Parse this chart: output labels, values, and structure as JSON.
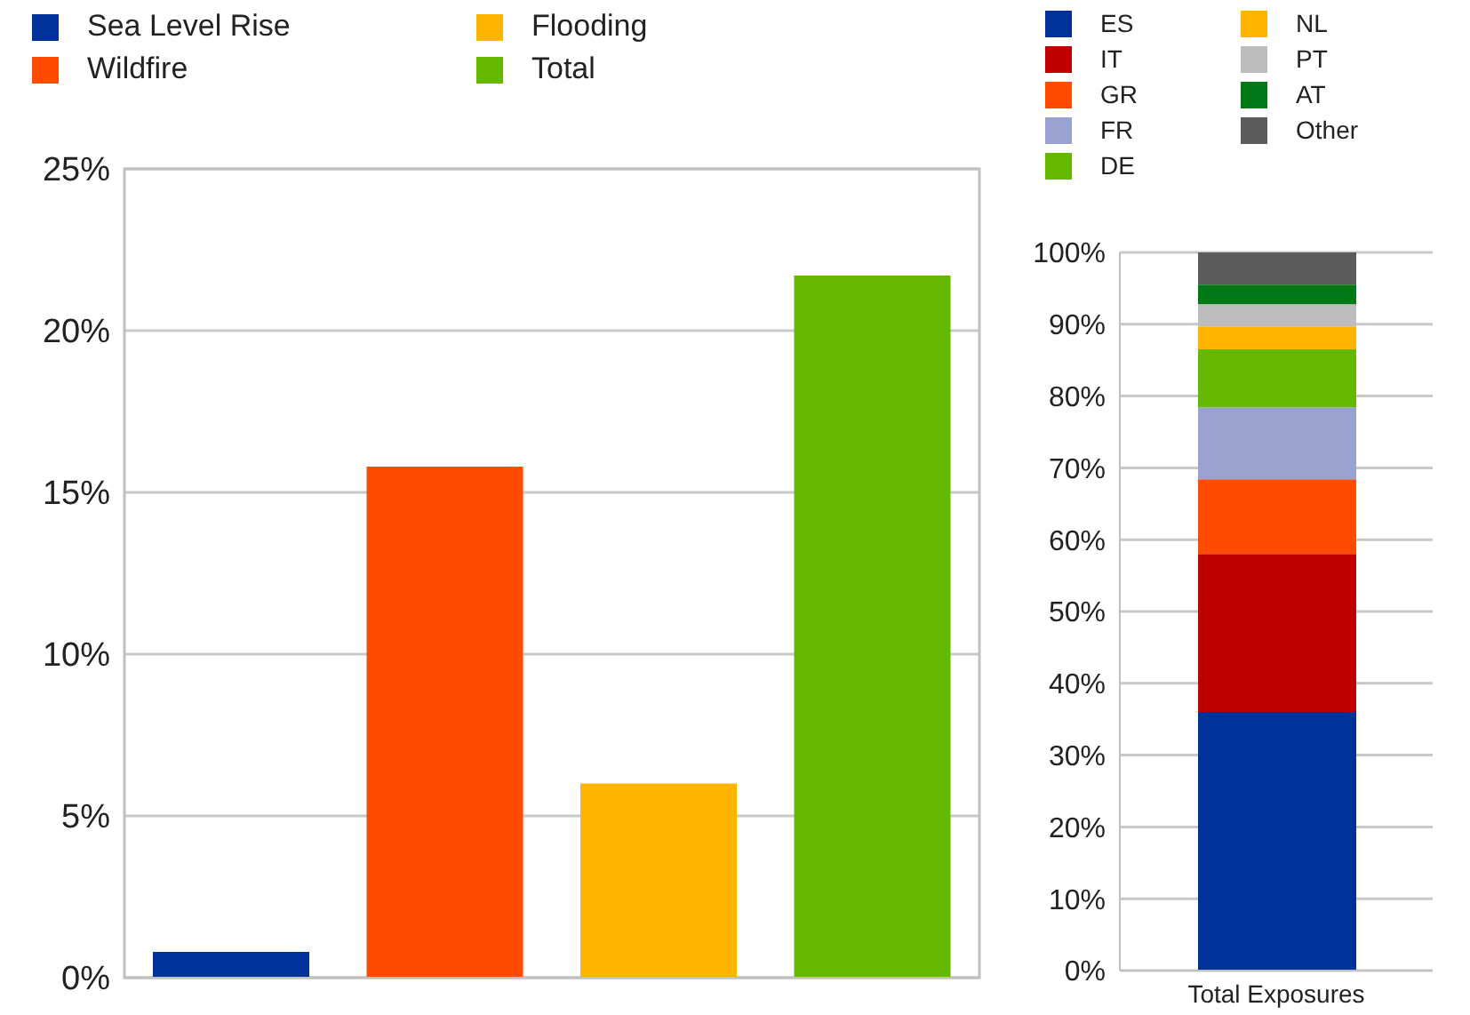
{
  "chart_data": [
    {
      "type": "bar",
      "stacked": true,
      "categories": [
        null,
        null,
        null,
        null
      ],
      "series": [
        {
          "name": "Sea Level Rise",
          "color": "#003299",
          "values": [
            0.8,
            null,
            null,
            null
          ]
        },
        {
          "name": "Wildfire",
          "color": "#ff4b00",
          "values": [
            null,
            15.8,
            null,
            null
          ]
        },
        {
          "name": "Flooding",
          "color": "#ffb400",
          "values": [
            null,
            null,
            6.0,
            null
          ]
        },
        {
          "name": "Total",
          "color": "#65b800",
          "values": [
            null,
            null,
            null,
            21.7
          ]
        }
      ],
      "ylim": [
        0,
        25
      ],
      "yticks": [
        {
          "value": 0,
          "label": "0%"
        },
        {
          "value": 5,
          "label": "5%"
        },
        {
          "value": 10,
          "label": "10%"
        },
        {
          "value": 15,
          "label": "15%"
        },
        {
          "value": 20,
          "label": "20%"
        },
        {
          "value": 25,
          "label": "25%"
        }
      ],
      "grid": "y",
      "legend": "top"
    },
    {
      "type": "bar",
      "stacked": true,
      "categories": [
        "Total Exposures"
      ],
      "series": [
        {
          "name": "ES",
          "color": "#003299",
          "values": [
            36
          ]
        },
        {
          "name": "IT",
          "color": "#c00000",
          "values": [
            22
          ]
        },
        {
          "name": "GR",
          "color": "#ff4b00",
          "values": [
            10.4
          ]
        },
        {
          "name": "FR",
          "color": "#98a1d0",
          "values": [
            10
          ]
        },
        {
          "name": "DE",
          "color": "#65b800",
          "values": [
            8.1
          ]
        },
        {
          "name": "NL",
          "color": "#ffb400",
          "values": [
            3.2
          ]
        },
        {
          "name": "PT",
          "color": "#bdbdbd",
          "values": [
            3.1
          ]
        },
        {
          "name": "AT",
          "color": "#007816",
          "values": [
            2.7
          ]
        },
        {
          "name": "Other",
          "color": "#5c5c5c",
          "values": [
            4.5
          ]
        }
      ],
      "ylim": [
        0,
        100
      ],
      "yticks": [
        {
          "value": 0,
          "label": "0%"
        },
        {
          "value": 10,
          "label": "10%"
        },
        {
          "value": 20,
          "label": "20%"
        },
        {
          "value": 30,
          "label": "30%"
        },
        {
          "value": 40,
          "label": "40%"
        },
        {
          "value": 50,
          "label": "50%"
        },
        {
          "value": 60,
          "label": "60%"
        },
        {
          "value": 70,
          "label": "70%"
        },
        {
          "value": 80,
          "label": "80%"
        },
        {
          "value": 90,
          "label": "90%"
        },
        {
          "value": 100,
          "label": "100%"
        }
      ],
      "grid": "y",
      "legend": "top"
    }
  ]
}
